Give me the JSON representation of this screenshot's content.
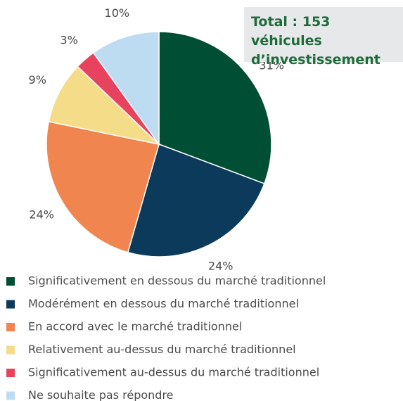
{
  "chart_data": {
    "type": "pie",
    "annotation": "Total : 153 véhicules d’investissement",
    "categories": [
      "Significativement en dessous du marché traditionnel",
      "Modérément en dessous du marché traditionnel",
      "En accord avec le marché traditionnel",
      "Relativement au-dessus du marché traditionnel",
      "Significativement au-dessus du marché traditionnel",
      "Ne souhaite pas répondre"
    ],
    "values": [
      31,
      24,
      24,
      9,
      3,
      10
    ],
    "value_labels": [
      "31%",
      "24%",
      "24%",
      "9%",
      "3%",
      "10%"
    ],
    "colors": [
      "#004f35",
      "#0c3a5b",
      "#f0854f",
      "#f4dc89",
      "#e8435e",
      "#bddcf2"
    ]
  }
}
